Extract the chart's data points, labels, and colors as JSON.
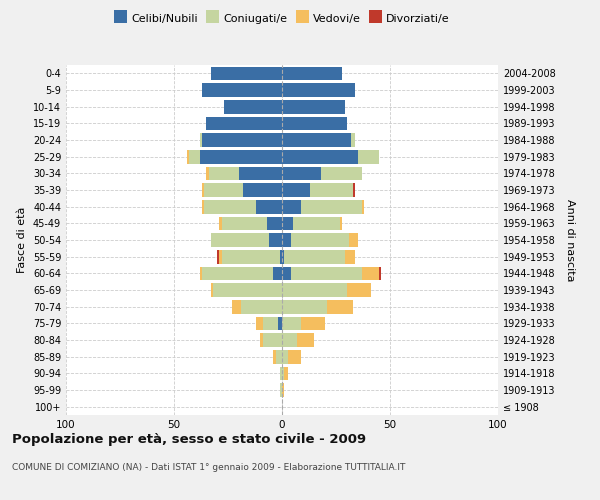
{
  "age_groups": [
    "100+",
    "95-99",
    "90-94",
    "85-89",
    "80-84",
    "75-79",
    "70-74",
    "65-69",
    "60-64",
    "55-59",
    "50-54",
    "45-49",
    "40-44",
    "35-39",
    "30-34",
    "25-29",
    "20-24",
    "15-19",
    "10-14",
    "5-9",
    "0-4"
  ],
  "birth_years": [
    "≤ 1908",
    "1909-1913",
    "1914-1918",
    "1919-1923",
    "1924-1928",
    "1929-1933",
    "1934-1938",
    "1939-1943",
    "1944-1948",
    "1949-1953",
    "1954-1958",
    "1959-1963",
    "1964-1968",
    "1969-1973",
    "1974-1978",
    "1979-1983",
    "1984-1988",
    "1989-1993",
    "1994-1998",
    "1999-2003",
    "2004-2008"
  ],
  "male_celibi": [
    0,
    0,
    0,
    0,
    0,
    2,
    0,
    0,
    4,
    1,
    6,
    7,
    12,
    18,
    20,
    38,
    37,
    35,
    27,
    37,
    33
  ],
  "male_coniugati": [
    0,
    1,
    1,
    3,
    9,
    7,
    19,
    32,
    33,
    27,
    27,
    21,
    24,
    18,
    14,
    5,
    1,
    0,
    0,
    0,
    0
  ],
  "male_vedovi": [
    0,
    0,
    0,
    1,
    1,
    3,
    4,
    1,
    1,
    1,
    0,
    1,
    1,
    1,
    1,
    1,
    0,
    0,
    0,
    0,
    0
  ],
  "male_divorziati": [
    0,
    0,
    0,
    0,
    0,
    0,
    0,
    0,
    0,
    1,
    0,
    0,
    0,
    0,
    0,
    0,
    0,
    0,
    0,
    0,
    0
  ],
  "female_celibi": [
    0,
    0,
    0,
    0,
    0,
    0,
    0,
    0,
    4,
    1,
    4,
    5,
    9,
    13,
    18,
    35,
    32,
    30,
    29,
    34,
    28
  ],
  "female_coniugati": [
    0,
    0,
    1,
    3,
    7,
    9,
    21,
    30,
    33,
    28,
    27,
    22,
    28,
    20,
    19,
    10,
    2,
    0,
    0,
    0,
    0
  ],
  "female_vedovi": [
    0,
    1,
    2,
    6,
    8,
    11,
    12,
    11,
    8,
    5,
    4,
    1,
    1,
    0,
    0,
    0,
    0,
    0,
    0,
    0,
    0
  ],
  "female_divorziati": [
    0,
    0,
    0,
    0,
    0,
    0,
    0,
    0,
    1,
    0,
    0,
    0,
    0,
    1,
    0,
    0,
    0,
    0,
    0,
    0,
    0
  ],
  "color_celibi": "#3a6ea5",
  "color_coniugati": "#c5d5a0",
  "color_vedovi": "#f5be5e",
  "color_divorziati": "#c0392b",
  "title": "Popolazione per età, sesso e stato civile - 2009",
  "subtitle": "COMUNE DI COMIZIANO (NA) - Dati ISTAT 1° gennaio 2009 - Elaborazione TUTTITALIA.IT",
  "ylabel_left": "Fasce di età",
  "ylabel_right": "Anni di nascita",
  "xlim": 100,
  "bg_color": "#f0f0f0",
  "plot_bg_color": "#ffffff"
}
